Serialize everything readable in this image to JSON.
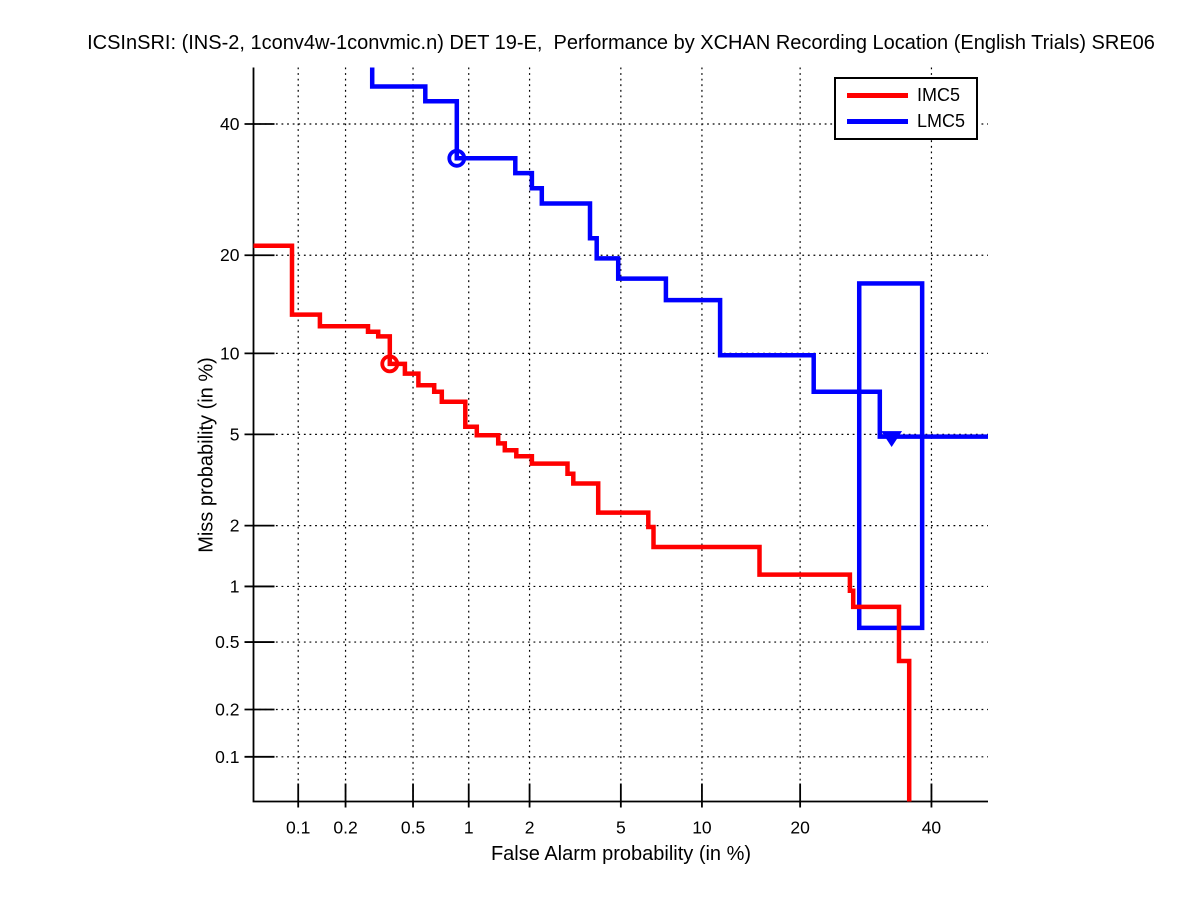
{
  "title": "ICSInSRI: (INS-2, 1conv4w-1convmic.n) DET 19-E,  Performance by XCHAN Recording Location (English Trials) SRE06",
  "axes": {
    "xlabel": "False Alarm probability (in %)",
    "ylabel": "Miss probability (in %)",
    "scale": "probit (normal deviate)",
    "x_tick_values": [
      0.1,
      0.2,
      0.5,
      1,
      2,
      5,
      10,
      20,
      40
    ],
    "x_tick_labels": [
      "0.1",
      "0.2",
      "0.5",
      "1",
      "2",
      "5",
      "10",
      "20",
      "40"
    ],
    "y_tick_values": [
      0.1,
      0.2,
      0.5,
      1,
      2,
      5,
      10,
      20,
      40
    ],
    "y_tick_labels": [
      "0.1",
      "0.2",
      "0.5",
      "1",
      "2",
      "5",
      "10",
      "20",
      "40"
    ],
    "x_range_pct": [
      0.05,
      50
    ],
    "y_range_pct": [
      0.05,
      50
    ],
    "grid": "dotted"
  },
  "legend": {
    "position": "top-right",
    "items": [
      {
        "label": "IMC5",
        "color": "#ff0000"
      },
      {
        "label": "LMC5",
        "color": "#0000ff"
      }
    ]
  },
  "colors": {
    "background": "#ffffff",
    "axis": "#000000",
    "grid": "#000000",
    "imc5": "#ff0000",
    "lmc5": "#0000ff"
  },
  "chart_data": {
    "type": "line",
    "subtype": "DET curve (step)",
    "title": "ICSInSRI: (INS-2, 1conv4w-1convmic.n) DET 19-E,  Performance by XCHAN Recording Location (English Trials) SRE06",
    "xlabel": "False Alarm probability (in %)",
    "ylabel": "Miss probability (in %)",
    "axis_scale": "probit",
    "x_range": [
      0.05,
      50
    ],
    "y_range": [
      0.05,
      50
    ],
    "legend_position": "top-right",
    "grid": true,
    "series": [
      {
        "name": "IMC5",
        "color": "#ff0000",
        "points": [
          [
            0.05,
            21.2
          ],
          [
            0.091,
            21.2
          ],
          [
            0.091,
            13.4
          ],
          [
            0.138,
            13.4
          ],
          [
            0.138,
            12.3
          ],
          [
            0.274,
            12.3
          ],
          [
            0.274,
            11.8
          ],
          [
            0.315,
            11.8
          ],
          [
            0.315,
            11.4
          ],
          [
            0.368,
            11.4
          ],
          [
            0.368,
            9.2
          ],
          [
            0.45,
            9.2
          ],
          [
            0.45,
            8.5
          ],
          [
            0.536,
            8.5
          ],
          [
            0.536,
            7.72
          ],
          [
            0.655,
            7.72
          ],
          [
            0.655,
            7.3
          ],
          [
            0.72,
            7.3
          ],
          [
            0.72,
            6.7
          ],
          [
            0.96,
            6.7
          ],
          [
            0.96,
            5.36
          ],
          [
            1.1,
            5.36
          ],
          [
            1.1,
            4.96
          ],
          [
            1.41,
            4.96
          ],
          [
            1.41,
            4.6
          ],
          [
            1.52,
            4.6
          ],
          [
            1.52,
            4.31
          ],
          [
            1.73,
            4.31
          ],
          [
            1.73,
            4.07
          ],
          [
            2.05,
            4.07
          ],
          [
            2.05,
            3.79
          ],
          [
            2.98,
            3.79
          ],
          [
            2.98,
            3.43
          ],
          [
            3.16,
            3.43
          ],
          [
            3.16,
            3.11
          ],
          [
            4.04,
            3.11
          ],
          [
            4.04,
            2.3
          ],
          [
            6.4,
            2.3
          ],
          [
            6.4,
            1.97
          ],
          [
            6.7,
            1.97
          ],
          [
            6.7,
            1.58
          ],
          [
            15.3,
            1.58
          ],
          [
            15.3,
            1.15
          ],
          [
            26.8,
            1.15
          ],
          [
            26.8,
            0.95
          ],
          [
            27.3,
            0.95
          ],
          [
            27.3,
            0.78
          ],
          [
            34.5,
            0.78
          ],
          [
            34.5,
            0.39
          ],
          [
            36.2,
            0.39
          ],
          [
            36.2,
            0.05
          ]
        ]
      },
      {
        "name": "LMC5",
        "color": "#0000ff",
        "points": [
          [
            0.29,
            50
          ],
          [
            0.29,
            46.6
          ],
          [
            0.585,
            46.6
          ],
          [
            0.585,
            44.0
          ],
          [
            0.866,
            44.0
          ],
          [
            0.866,
            34.2
          ],
          [
            1.71,
            34.2
          ],
          [
            1.71,
            31.8
          ],
          [
            2.05,
            31.8
          ],
          [
            2.05,
            29.4
          ],
          [
            2.28,
            29.4
          ],
          [
            2.28,
            27.1
          ],
          [
            3.73,
            27.1
          ],
          [
            3.73,
            22.2
          ],
          [
            3.98,
            22.2
          ],
          [
            3.98,
            19.6
          ],
          [
            4.88,
            19.6
          ],
          [
            4.88,
            17.2
          ],
          [
            7.45,
            17.2
          ],
          [
            7.45,
            14.85
          ],
          [
            11.5,
            14.85
          ],
          [
            11.5,
            9.85
          ],
          [
            21.75,
            9.85
          ],
          [
            21.75,
            7.3
          ],
          [
            31.4,
            7.3
          ],
          [
            31.4,
            4.9
          ],
          [
            50,
            4.9
          ]
        ]
      }
    ],
    "markers": [
      {
        "series": "IMC5",
        "shape": "open-circle",
        "fa": 0.368,
        "miss": 9.2,
        "color": "#ff0000"
      },
      {
        "series": "LMC5",
        "shape": "open-circle",
        "fa": 0.866,
        "miss": 34.2,
        "color": "#0000ff"
      },
      {
        "series": "LMC5",
        "shape": "filled-triangle-down",
        "fa": 33.3,
        "miss": 4.9,
        "color": "#0000ff"
      }
    ],
    "annotations": [
      {
        "type": "rect",
        "series": "LMC5",
        "color": "#0000ff",
        "fa_range": [
          28.2,
          38.4
        ],
        "miss_range": [
          0.6,
          16.65
        ]
      }
    ]
  }
}
